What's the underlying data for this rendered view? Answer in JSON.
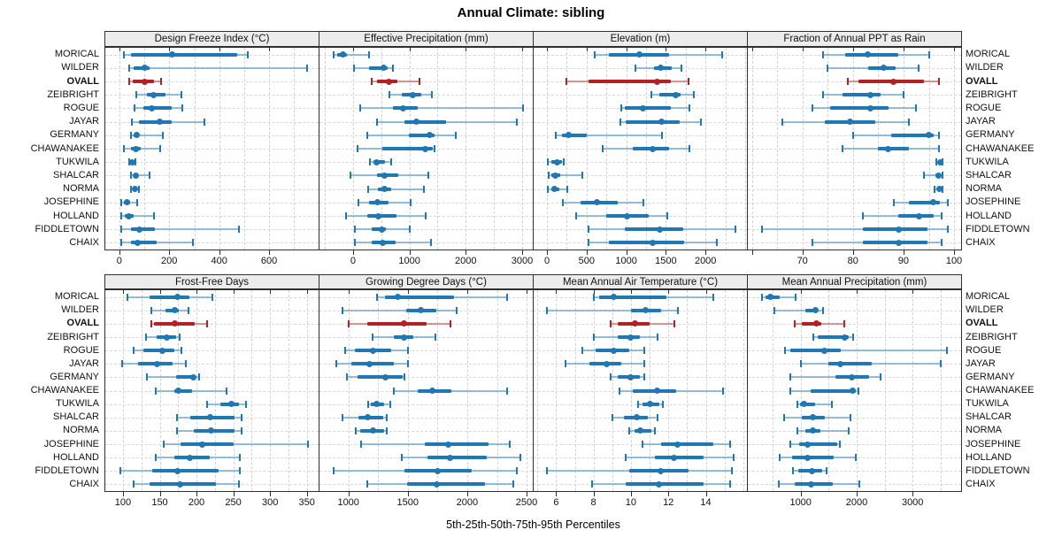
{
  "title": "Annual Climate: sibling",
  "footer": "5th-25th-50th-75th-95th Percentiles",
  "percentiles_shown": [
    5,
    25,
    50,
    75,
    95
  ],
  "stations": [
    "MORICAL",
    "WILDER",
    "OVALL",
    "ZEIBRIGHT",
    "ROGUE",
    "JAYAR",
    "GERMANY",
    "CHAWANAKEE",
    "TUKWILA",
    "SHALCAR",
    "NORMA",
    "JOSEPHINE",
    "HOLLAND",
    "FIDDLETOWN",
    "CHAIX"
  ],
  "highlight_station": "OVALL",
  "colors": {
    "series_blue": "#1f77b4",
    "highlight_red": "#b22222",
    "strip_bg": "#ececec",
    "panel_border": "#2f2f2f",
    "grid": "#d2d2d2"
  },
  "chart_data": [
    {
      "type": "interval-dotplot",
      "title": "Design Freeze Index (°C)",
      "xlim": [
        -56,
        798
      ],
      "ticks": [
        0,
        200,
        400,
        600
      ],
      "tick_labels": [
        "0",
        "200",
        "400",
        "600"
      ],
      "grid": [
        0,
        100,
        200,
        300,
        400,
        500,
        600,
        700
      ],
      "values": [
        [
          18,
          45,
          212,
          473,
          514
        ],
        [
          39,
          56,
          103,
          121,
          751
        ],
        [
          40,
          55,
          103,
          140,
          168
        ],
        [
          68,
          110,
          136,
          185,
          250
        ],
        [
          60,
          97,
          130,
          209,
          253
        ],
        [
          50,
          80,
          162,
          209,
          341
        ],
        [
          45,
          56,
          68,
          80,
          175
        ],
        [
          18,
          45,
          66,
          86,
          165
        ],
        [
          38,
          45,
          52,
          58,
          65
        ],
        [
          45,
          56,
          66,
          74,
          121
        ],
        [
          45,
          55,
          62,
          70,
          80
        ],
        [
          9,
          18,
          29,
          42,
          72
        ],
        [
          6,
          21,
          36,
          56,
          138
        ],
        [
          9,
          48,
          80,
          144,
          479
        ],
        [
          7,
          45,
          72,
          150,
          293
        ]
      ]
    },
    {
      "type": "interval-dotplot",
      "title": "Effective Precipitation (mm)",
      "xlim": [
        -594,
        3188
      ],
      "ticks": [
        0,
        1000,
        2000,
        3000
      ],
      "tick_labels": [
        "0",
        "1000",
        "2000",
        "3000"
      ],
      "grid": [
        -500,
        0,
        500,
        1000,
        1500,
        2000,
        2500,
        3000
      ],
      "values": [
        [
          -340,
          -278,
          -173,
          -105,
          278
        ],
        [
          16,
          288,
          540,
          613,
          707
        ],
        [
          330,
          419,
          639,
          786,
          1179
        ],
        [
          639,
          865,
          1058,
          1205,
          1399
        ],
        [
          131,
          707,
          891,
          1153,
          3013
        ],
        [
          430,
          917,
          1127,
          1651,
          2898
        ],
        [
          246,
          996,
          1352,
          1441,
          1824
        ],
        [
          79,
          524,
          1273,
          1415,
          1441
        ],
        [
          299,
          367,
          419,
          576,
          681
        ],
        [
          -52,
          419,
          561,
          802,
          1336
        ],
        [
          262,
          445,
          561,
          681,
          1258
        ],
        [
          89,
          278,
          435,
          629,
          1022
        ],
        [
          -131,
          251,
          445,
          770,
          1294
        ],
        [
          37,
          330,
          508,
          576,
          1006
        ],
        [
          26,
          330,
          524,
          749,
          1389
        ]
      ]
    },
    {
      "type": "interval-dotplot",
      "title": "Elevation (m)",
      "xlim": [
        -167,
        2522
      ],
      "ticks": [
        0,
        500,
        1000,
        1500,
        2000
      ],
      "tick_labels": [
        "0",
        "500",
        "1000",
        "1500",
        "2000"
      ],
      "grid": [
        0,
        250,
        500,
        750,
        1000,
        1250,
        1500,
        1750,
        2000,
        2250,
        2500
      ],
      "values": [
        [
          603,
          781,
          1169,
          1539,
          2205
        ],
        [
          1114,
          1354,
          1436,
          1576,
          1698
        ],
        [
          244,
          522,
          1391,
          1558,
          1780
        ],
        [
          1317,
          1421,
          1621,
          1687,
          1854
        ],
        [
          940,
          984,
          1214,
          1558,
          1798
        ],
        [
          921,
          995,
          1447,
          1676,
          1946
        ],
        [
          107,
          189,
          274,
          503,
          1454
        ],
        [
          707,
          1077,
          1336,
          1539,
          1798
        ],
        [
          15,
          52,
          126,
          189,
          207
        ],
        [
          22,
          52,
          104,
          170,
          448
        ],
        [
          15,
          52,
          96,
          152,
          255
        ],
        [
          200,
          429,
          633,
          892,
          1217
        ],
        [
          366,
          744,
          1014,
          1280,
          1521
        ],
        [
          522,
          984,
          1421,
          1724,
          2372
        ],
        [
          522,
          781,
          1328,
          1724,
          2139
        ]
      ]
    },
    {
      "type": "interval-dotplot",
      "title": "Fraction of Annual PPT as Rain",
      "xlim": [
        59.2,
        101.4
      ],
      "ticks": [
        60,
        70,
        80,
        90,
        100
      ],
      "tick_labels": [
        "",
        "70",
        "80",
        "90",
        "100"
      ],
      "grid": [
        60,
        65,
        70,
        75,
        80,
        85,
        90,
        95,
        100
      ],
      "values": [
        [
          74,
          78.5,
          83,
          89,
          95
        ],
        [
          75,
          83,
          86,
          88.5,
          93
        ],
        [
          79,
          81,
          88,
          94,
          97
        ],
        [
          74,
          78,
          83.5,
          85.5,
          90
        ],
        [
          72,
          75.5,
          83.5,
          87,
          92.5
        ],
        [
          66,
          74.5,
          79.5,
          84.5,
          91
        ],
        [
          80,
          87.5,
          95,
          96,
          97
        ],
        [
          78,
          85,
          87,
          91,
          97
        ],
        [
          96.5,
          96.9,
          97.2,
          97.5,
          97.8
        ],
        [
          94,
          96.3,
          97,
          97.4,
          97.8
        ],
        [
          96.2,
          96.7,
          97.1,
          97.5,
          97.8
        ],
        [
          88,
          91,
          95.9,
          97.2,
          98.8
        ],
        [
          82,
          89,
          93,
          95.9,
          97.5
        ],
        [
          62,
          82,
          89,
          94.8,
          98.8
        ],
        [
          72,
          82,
          89,
          94.8,
          97.5
        ]
      ]
    },
    {
      "type": "interval-dotplot",
      "title": "Frost-Free Days",
      "xlim": [
        76,
        366
      ],
      "ticks": [
        100,
        150,
        200,
        250,
        300,
        350
      ],
      "tick_labels": [
        "100",
        "150",
        "200",
        "250",
        "300",
        "350"
      ],
      "grid": [
        100,
        125,
        150,
        175,
        200,
        225,
        250,
        275,
        300,
        325,
        350
      ],
      "values": [
        [
          106,
          136,
          174,
          190,
          222
        ],
        [
          138,
          158,
          170,
          176,
          189
        ],
        [
          139,
          142,
          170,
          198,
          214
        ],
        [
          131,
          146,
          159,
          172,
          177
        ],
        [
          114,
          128,
          154,
          170,
          179
        ],
        [
          99,
          120,
          146,
          168,
          185
        ],
        [
          133,
          172,
          196,
          198,
          203
        ],
        [
          144,
          170,
          175,
          194,
          241
        ],
        [
          214,
          232,
          248,
          258,
          267
        ],
        [
          174,
          192,
          218,
          252,
          261
        ],
        [
          173,
          196,
          220,
          252,
          261
        ],
        [
          155,
          178,
          208,
          250,
          351
        ],
        [
          145,
          170,
          191,
          218,
          259
        ],
        [
          96,
          140,
          174,
          230,
          259
        ],
        [
          115,
          136,
          178,
          226,
          258
        ]
      ]
    },
    {
      "type": "interval-dotplot",
      "title": "Growing Degree Days (°C)",
      "xlim": [
        756,
        2552
      ],
      "ticks": [
        1000,
        1500,
        2000,
        2500
      ],
      "tick_labels": [
        "1000",
        "1500",
        "2000",
        "2500"
      ],
      "grid": [
        1000,
        1250,
        1500,
        1750,
        2000,
        2250,
        2500
      ],
      "values": [
        [
          1243,
          1309,
          1416,
          1891,
          2337
        ],
        [
          951,
          1483,
          1606,
          1738,
          1911
        ],
        [
          1000,
          1161,
          1470,
          1656,
          1861
        ],
        [
          1205,
          1384,
          1470,
          1545,
          1730
        ],
        [
          970,
          1050,
          1205,
          1359,
          1502
        ],
        [
          896,
          1025,
          1178,
          1384,
          1502
        ],
        [
          983,
          1074,
          1309,
          1458,
          1470
        ],
        [
          1384,
          1582,
          1705,
          1866,
          2332
        ],
        [
          1168,
          1186,
          1235,
          1302,
          1354
        ],
        [
          951,
          1087,
          1161,
          1292,
          1322
        ],
        [
          1062,
          1099,
          1210,
          1297,
          1322
        ],
        [
          1106,
          1644,
          1841,
          2176,
          2361
        ],
        [
          1446,
          1668,
          1854,
          2163,
          2448
        ],
        [
          876,
          1470,
          1750,
          2040,
          2416
        ],
        [
          1161,
          1495,
          1743,
          2151,
          2391
        ]
      ]
    },
    {
      "type": "interval-dotplot",
      "title": "Mean Annual Air Temperature (°C)",
      "xlim": [
        4.8,
        16.2
      ],
      "ticks": [
        6,
        8,
        10,
        12,
        14
      ],
      "tick_labels": [
        "6",
        "8",
        "10",
        "12",
        "14"
      ],
      "grid": [
        5,
        6,
        7,
        8,
        9,
        10,
        11,
        12,
        13,
        14,
        15,
        16
      ],
      "values": [
        [
          8.0,
          8.3,
          9.1,
          11.9,
          14.4
        ],
        [
          5.5,
          10.0,
          10.8,
          11.6,
          12.5
        ],
        [
          8.9,
          9.3,
          10.2,
          11.0,
          12.3
        ],
        [
          8.0,
          9.3,
          10.0,
          10.5,
          11.4
        ],
        [
          7.4,
          8.1,
          9.1,
          9.9,
          10.7
        ],
        [
          6.5,
          7.8,
          8.7,
          9.5,
          10.7
        ],
        [
          8.9,
          9.3,
          10.0,
          10.5,
          10.7
        ],
        [
          9.4,
          10.1,
          11.4,
          12.4,
          14.9
        ],
        [
          10.4,
          10.6,
          11.0,
          11.5,
          11.7
        ],
        [
          9.0,
          9.6,
          10.3,
          10.9,
          11.4
        ],
        [
          9.9,
          10.2,
          10.5,
          11.1,
          11.3
        ],
        [
          10.6,
          11.6,
          12.5,
          14.4,
          15.3
        ],
        [
          9.7,
          11.3,
          12.3,
          13.9,
          15.5
        ],
        [
          5.5,
          9.9,
          11.6,
          13.1,
          15.4
        ],
        [
          7.9,
          9.7,
          11.5,
          13.9,
          15.3
        ]
      ]
    },
    {
      "type": "interval-dotplot",
      "title": "Mean Annual Precipitation (mm)",
      "xlim": [
        56,
        3866
      ],
      "ticks": [
        1000,
        2000,
        3000
      ],
      "tick_labels": [
        "1000",
        "2000",
        "3000"
      ],
      "grid": [
        500,
        1000,
        1500,
        2000,
        2500,
        3000,
        3500
      ],
      "values": [
        [
          314,
          375,
          454,
          625,
          912
        ],
        [
          522,
          1078,
          1260,
          1312,
          1400
        ],
        [
          896,
          1026,
          1276,
          1364,
          1780
        ],
        [
          1218,
          1312,
          1780,
          1858,
          1936
        ],
        [
          714,
          818,
          1416,
          1718,
          3616
        ],
        [
          1010,
          1494,
          1702,
          2274,
          3496
        ],
        [
          808,
          1624,
          1910,
          2222,
          2430
        ],
        [
          818,
          1182,
          1926,
          1988,
          2030
        ],
        [
          948,
          990,
          1052,
          1260,
          1562
        ],
        [
          698,
          1026,
          1218,
          1426,
          1894
        ],
        [
          938,
          1078,
          1218,
          1354,
          1858
        ],
        [
          818,
          974,
          1120,
          1650,
          1692
        ],
        [
          626,
          844,
          1120,
          1598,
          1988
        ],
        [
          860,
          964,
          1208,
          1385,
          1457
        ],
        [
          610,
          886,
          1182,
          1572,
          2055
        ]
      ]
    }
  ]
}
